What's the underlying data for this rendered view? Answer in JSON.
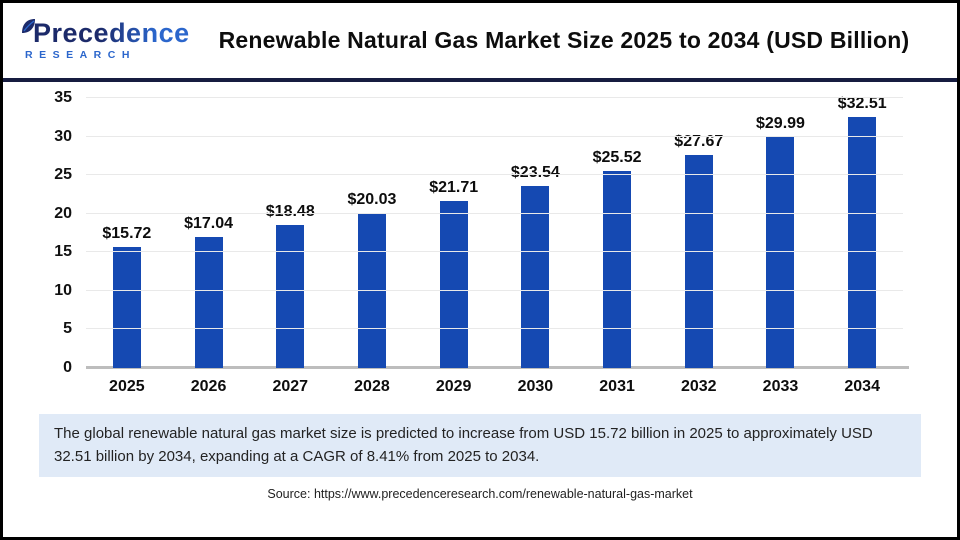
{
  "header": {
    "logo": {
      "line1": "Precedence",
      "line2": "RESEARCH"
    },
    "title": "Renewable Natural Gas Market Size 2025 to 2034 (USD Billion)"
  },
  "chart_data": {
    "type": "bar",
    "categories": [
      "2025",
      "2026",
      "2027",
      "2028",
      "2029",
      "2030",
      "2031",
      "2032",
      "2033",
      "2034"
    ],
    "values": [
      15.72,
      17.04,
      18.48,
      20.03,
      21.71,
      23.54,
      25.52,
      27.67,
      29.99,
      32.51
    ],
    "value_prefix": "$",
    "title": "Renewable Natural Gas Market Size 2025 to 2034 (USD Billion)",
    "xlabel": "",
    "ylabel": "",
    "ylim": [
      0,
      35
    ],
    "yticks": [
      0,
      5,
      10,
      15,
      20,
      25,
      30,
      35
    ],
    "grid": true,
    "legend": false,
    "bar_color": "#1549b2"
  },
  "colors": {
    "bar": "#1549b2",
    "navy_rule": "#161c40",
    "logo_navy": "#1c2a6a",
    "logo_blue": "#2b66cc",
    "note_background": "#e0eaf7",
    "gridline": "#e9e9e9",
    "baseline": "#bdbdbd"
  },
  "footer": {
    "note": "The global renewable natural gas market size is predicted to increase from USD 15.72 billion in 2025 to approximately USD 32.51 billion by 2034, expanding at a CAGR of 8.41% from 2025 to 2034."
  },
  "source": {
    "text": "Source: https://www.precedenceresearch.com/renewable-natural-gas-market"
  }
}
